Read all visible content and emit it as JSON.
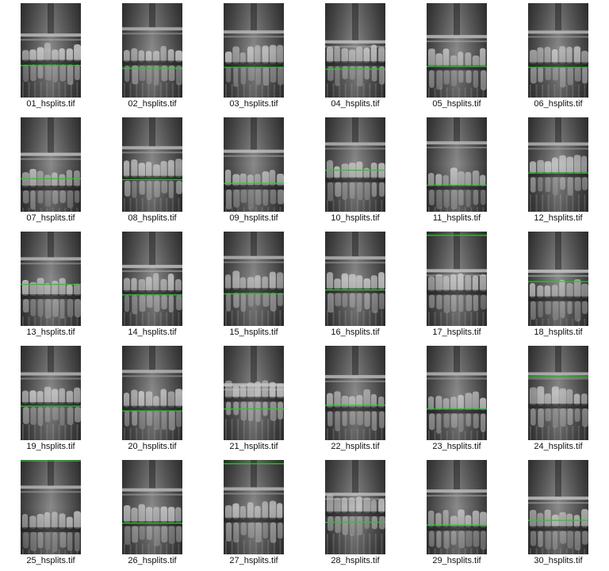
{
  "gallery": {
    "line_color": "#22cc22",
    "items": [
      {
        "filename": "01_hsplits.tif",
        "split_fraction": 0.66
      },
      {
        "filename": "02_hsplits.tif",
        "split_fraction": 0.69
      },
      {
        "filename": "03_hsplits.tif",
        "split_fraction": 0.68
      },
      {
        "filename": "04_hsplits.tif",
        "split_fraction": 0.7
      },
      {
        "filename": "05_hsplits.tif",
        "split_fraction": 0.67
      },
      {
        "filename": "06_hsplits.tif",
        "split_fraction": 0.68
      },
      {
        "filename": "07_hsplits.tif",
        "split_fraction": 0.65
      },
      {
        "filename": "08_hsplits.tif",
        "split_fraction": 0.66
      },
      {
        "filename": "09_hsplits.tif",
        "split_fraction": 0.7
      },
      {
        "filename": "10_hsplits.tif",
        "split_fraction": 0.56
      },
      {
        "filename": "11_hsplits.tif",
        "split_fraction": 0.72
      },
      {
        "filename": "12_hsplits.tif",
        "split_fraction": 0.59
      },
      {
        "filename": "13_hsplits.tif",
        "split_fraction": 0.56
      },
      {
        "filename": "14_hsplits.tif",
        "split_fraction": 0.67
      },
      {
        "filename": "15_hsplits.tif",
        "split_fraction": 0.66
      },
      {
        "filename": "16_hsplits.tif",
        "split_fraction": 0.62
      },
      {
        "filename": "17_hsplits.tif",
        "split_fraction": 0.04
      },
      {
        "filename": "18_hsplits.tif",
        "split_fraction": 0.53
      },
      {
        "filename": "19_hsplits.tif",
        "split_fraction": 0.64
      },
      {
        "filename": "20_hsplits.tif",
        "split_fraction": 0.69
      },
      {
        "filename": "21_hsplits.tif",
        "split_fraction": 0.67
      },
      {
        "filename": "22_hsplits.tif",
        "split_fraction": 0.63
      },
      {
        "filename": "23_hsplits.tif",
        "split_fraction": 0.67
      },
      {
        "filename": "24_hsplits.tif",
        "split_fraction": 0.33
      },
      {
        "filename": "25_hsplits.tif",
        "split_fraction": 0.01
      },
      {
        "filename": "26_hsplits.tif",
        "split_fraction": 0.67
      },
      {
        "filename": "27_hsplits.tif",
        "split_fraction": 0.04
      },
      {
        "filename": "28_hsplits.tif",
        "split_fraction": 0.66
      },
      {
        "filename": "29_hsplits.tif",
        "split_fraction": 0.69
      },
      {
        "filename": "30_hsplits.tif",
        "split_fraction": 0.64
      }
    ]
  }
}
